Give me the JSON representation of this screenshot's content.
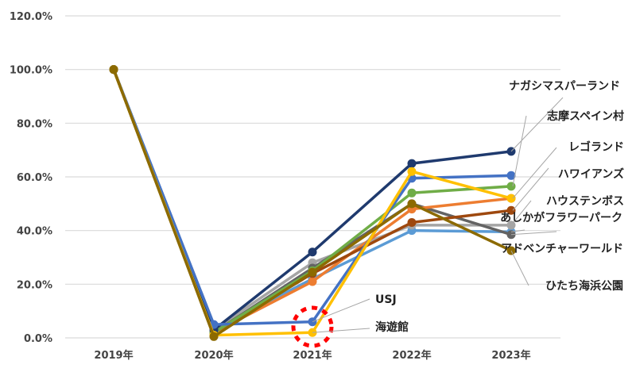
{
  "chart_data": {
    "type": "line",
    "title": "",
    "xlabel": "",
    "ylabel": "",
    "categories": [
      "2019年",
      "2020年",
      "2021年",
      "2022年",
      "2023年"
    ],
    "y_ticks": [
      "0.0%",
      "20.0%",
      "40.0%",
      "60.0%",
      "80.0%",
      "100.0%",
      "120.0%"
    ],
    "ylim": [
      0,
      120
    ],
    "grid": true,
    "legend_position": "data-labels-right",
    "series": [
      {
        "name": "ナガシマスパーランド",
        "color": "#1f3a6e",
        "values": [
          100,
          3,
          32,
          65,
          69.5
        ]
      },
      {
        "name": "志摩スペイン村",
        "color": "#70ad47",
        "values": [
          100,
          2,
          25,
          54,
          56.5
        ]
      },
      {
        "name": "レゴランド",
        "color": "#ed7d31",
        "values": [
          100,
          2,
          21,
          48,
          52
        ]
      },
      {
        "name": "ハワイアンズ",
        "color": "#9e480e",
        "values": [
          100,
          2,
          24,
          43,
          47.5
        ]
      },
      {
        "name": "ハウステンボス",
        "color": "#a5a5a5",
        "values": [
          100,
          3,
          28,
          42,
          42
        ]
      },
      {
        "name": "あしかがフラワーパーク",
        "color": "#5b9bd5",
        "values": [
          100,
          3,
          22,
          40,
          39.5
        ]
      },
      {
        "name": "アドベンチャーワールド",
        "color": "#636363",
        "values": [
          100,
          2,
          26,
          50,
          38.5
        ]
      },
      {
        "name": "ひたち海浜公園",
        "color": "#8c6a00",
        "values": [
          100,
          0.5,
          24.5,
          50,
          32.5
        ]
      },
      {
        "name": "USJ",
        "color": "#4472c4",
        "values": [
          100,
          5,
          6,
          59.5,
          60.5
        ]
      },
      {
        "name": "海遊館",
        "color": "#ffc000",
        "values": [
          100,
          1,
          2,
          62,
          52
        ]
      }
    ],
    "annotations": [
      {
        "type": "dashed-circle",
        "color": "#ff0000",
        "at": "2021年",
        "around": [
          "USJ",
          "海遊館"
        ]
      }
    ]
  }
}
